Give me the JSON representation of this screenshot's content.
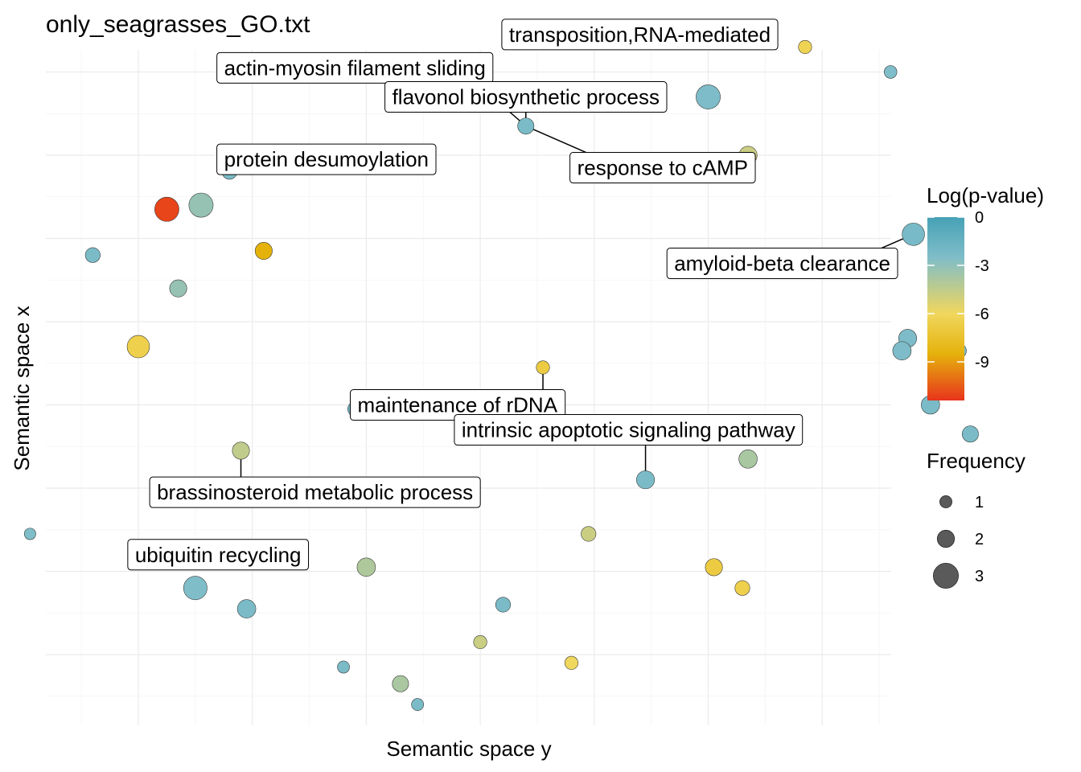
{
  "chart_data": {
    "type": "scatter",
    "title": "only_seagrasses_GO.txt",
    "xlabel": "Semantic space y",
    "ylabel": "Semantic space x",
    "grid": true,
    "color_legend": {
      "title": "Log(p-value)",
      "ticks": [
        "0",
        "-3",
        "-6",
        "-9"
      ],
      "tick_values": [
        0,
        -3,
        -6,
        -9
      ],
      "range": [
        -11.4,
        0
      ],
      "colors": [
        "#e8341c",
        "#e5b20c",
        "#f0d75d",
        "#7fbdc9",
        "#46a1b5"
      ]
    },
    "size_legend": {
      "title": "Frequency",
      "labels": [
        "1",
        "2",
        "3"
      ],
      "values": [
        1,
        2,
        3
      ]
    },
    "points": [
      {
        "x": 3.45,
        "y": 4.1,
        "freq": 1.8,
        "logp": -6.5
      },
      {
        "x": 5.85,
        "y": 3.3,
        "freq": 1.2,
        "logp": -6.3
      },
      {
        "x": 6.6,
        "y": 3.0,
        "freq": 1.1,
        "logp": -2.5
      },
      {
        "x": 5.0,
        "y": 2.7,
        "freq": 3.0,
        "logp": -2.4
      },
      {
        "x": 3.4,
        "y": 2.35,
        "freq": 1.8,
        "logp": -2.3
      },
      {
        "x": 5.35,
        "y": 2.0,
        "freq": 2.2,
        "logp": -4.8
      },
      {
        "x": 0.8,
        "y": 1.8,
        "freq": 1.5,
        "logp": -2.3
      },
      {
        "x": 6.8,
        "y": 1.05,
        "freq": 2.5,
        "logp": -2.2
      },
      {
        "x": 0.25,
        "y": 1.35,
        "freq": 3.0,
        "logp": -11.0
      },
      {
        "x": 0.55,
        "y": 1.4,
        "freq": 3.0,
        "logp": -3.2
      },
      {
        "x": -0.4,
        "y": 0.8,
        "freq": 1.5,
        "logp": -2.3
      },
      {
        "x": 1.1,
        "y": 0.85,
        "freq": 2.0,
        "logp": -8.5
      },
      {
        "x": 0.35,
        "y": 0.4,
        "freq": 2.0,
        "logp": -3.2
      },
      {
        "x": 0.0,
        "y": -0.3,
        "freq": 2.5,
        "logp": -6.5
      },
      {
        "x": 6.75,
        "y": -0.2,
        "freq": 2.2,
        "logp": -2.4
      },
      {
        "x": 6.7,
        "y": -0.35,
        "freq": 2.3,
        "logp": -2.4
      },
      {
        "x": 7.2,
        "y": -0.35,
        "freq": 1.5,
        "logp": -2.3
      },
      {
        "x": 7.05,
        "y": -0.65,
        "freq": 1.8,
        "logp": -2.4
      },
      {
        "x": 6.95,
        "y": -1.0,
        "freq": 2.3,
        "logp": -2.3
      },
      {
        "x": 7.3,
        "y": -1.35,
        "freq": 1.8,
        "logp": -2.3
      },
      {
        "x": 1.9,
        "y": -1.05,
        "freq": 1.4,
        "logp": -2.2
      },
      {
        "x": 3.55,
        "y": -0.55,
        "freq": 1.2,
        "logp": -6.8
      },
      {
        "x": 0.9,
        "y": -1.55,
        "freq": 2.0,
        "logp": -4.5
      },
      {
        "x": 5.35,
        "y": -1.65,
        "freq": 2.3,
        "logp": -3.8
      },
      {
        "x": 4.45,
        "y": -1.9,
        "freq": 2.2,
        "logp": -2.3
      },
      {
        "x": -0.95,
        "y": -2.55,
        "freq": 0.9,
        "logp": -2.5
      },
      {
        "x": 3.95,
        "y": -2.55,
        "freq": 1.5,
        "logp": -4.8
      },
      {
        "x": 2.0,
        "y": -2.95,
        "freq": 2.3,
        "logp": -4.0
      },
      {
        "x": 0.5,
        "y": -3.2,
        "freq": 2.8,
        "logp": -2.5
      },
      {
        "x": 0.95,
        "y": -3.45,
        "freq": 2.3,
        "logp": -2.3
      },
      {
        "x": 3.2,
        "y": -3.4,
        "freq": 1.5,
        "logp": -2.3
      },
      {
        "x": 5.05,
        "y": -2.95,
        "freq": 2.0,
        "logp": -6.8
      },
      {
        "x": 5.3,
        "y": -3.2,
        "freq": 1.5,
        "logp": -6.5
      },
      {
        "x": 3.0,
        "y": -3.85,
        "freq": 1.2,
        "logp": -4.8
      },
      {
        "x": 1.8,
        "y": -4.15,
        "freq": 1.0,
        "logp": -2.3
      },
      {
        "x": 2.3,
        "y": -4.35,
        "freq": 1.8,
        "logp": -3.8
      },
      {
        "x": 3.8,
        "y": -4.1,
        "freq": 1.2,
        "logp": -6.0
      },
      {
        "x": 2.45,
        "y": -4.6,
        "freq": 1.0,
        "logp": -2.3
      }
    ],
    "labels": [
      {
        "text": "actin-myosin filament sliding",
        "x": 1.9,
        "y": 3.05
      },
      {
        "text": "transposition,RNA-mediated",
        "x": 4.4,
        "y": 3.45
      },
      {
        "text": "flavonol biosynthetic process",
        "x": 3.4,
        "y": 2.7
      },
      {
        "text": "protein desumoylation",
        "x": 1.65,
        "y": 1.95
      },
      {
        "text": "response to cAMP",
        "x": 4.6,
        "y": 1.85
      },
      {
        "text": "amyloid-beta clearance",
        "x": 5.65,
        "y": 0.7
      },
      {
        "text": "maintenance of rDNA",
        "x": 2.8,
        "y": -1.0
      },
      {
        "text": "intrinsic apoptotic signaling pathway",
        "x": 4.3,
        "y": -1.3
      },
      {
        "text": "brassinosteroid metabolic process",
        "x": 1.55,
        "y": -2.05
      },
      {
        "text": "ubiquitin recycling",
        "x": 0.7,
        "y": -2.8
      }
    ]
  }
}
